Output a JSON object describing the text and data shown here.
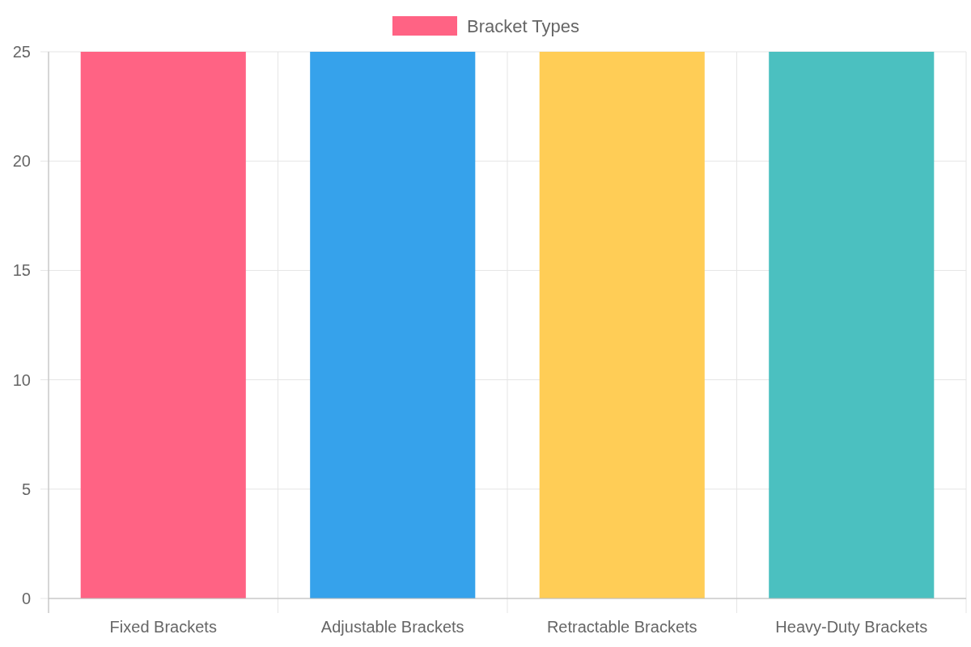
{
  "chart_data": {
    "type": "bar",
    "categories": [
      "Fixed Brackets",
      "Adjustable Brackets",
      "Retractable Brackets",
      "Heavy-Duty Brackets"
    ],
    "series": [
      {
        "name": "Bracket Types",
        "color": "#ff6384",
        "colors": [
          "#ff6384",
          "#36a2eb",
          "#ffcd56",
          "#4bc0c0"
        ],
        "values": [
          25,
          25,
          25,
          25
        ]
      }
    ],
    "ylim": [
      0,
      25
    ],
    "yticks": [
      0,
      5,
      10,
      15,
      20,
      25
    ],
    "grid": true,
    "legend": "top"
  }
}
